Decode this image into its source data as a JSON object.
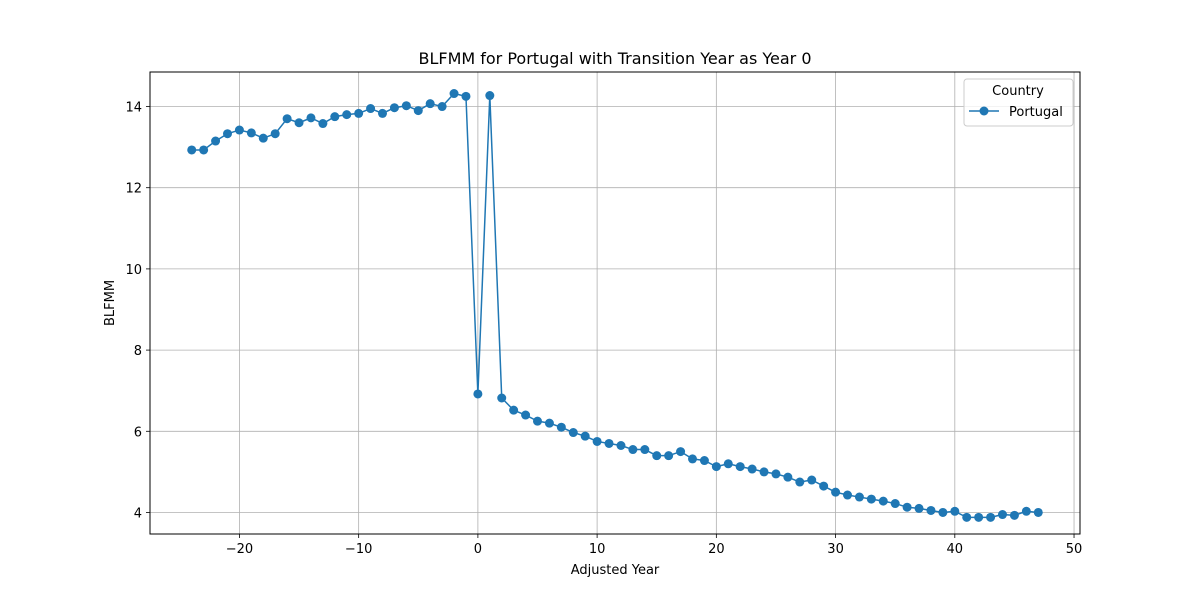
{
  "chart_data": {
    "type": "line",
    "title": "BLFMM for Portugal with Transition Year as Year 0",
    "xlabel": "Adjusted Year",
    "ylabel": "BLFMM",
    "xlim": [
      -27.5,
      50.5
    ],
    "ylim": [
      3.47,
      14.85
    ],
    "xticks": [
      -20,
      -10,
      0,
      10,
      20,
      30,
      40,
      50
    ],
    "xtick_labels": [
      "−20",
      "−10",
      "0",
      "10",
      "20",
      "30",
      "40",
      "50"
    ],
    "yticks": [
      4,
      6,
      8,
      10,
      12,
      14
    ],
    "ytick_labels": [
      "4",
      "6",
      "8",
      "10",
      "12",
      "14"
    ],
    "grid": true,
    "legend": {
      "title": "Country",
      "placement": "top-right"
    },
    "series": [
      {
        "name": "Portugal",
        "color": "#1f77b4",
        "marker": "circle",
        "x": [
          -24,
          -23,
          -22,
          -21,
          -20,
          -19,
          -18,
          -17,
          -16,
          -15,
          -14,
          -13,
          -12,
          -11,
          -10,
          -9,
          -8,
          -7,
          -6,
          -5,
          -4,
          -3,
          -2,
          -1,
          0,
          1,
          2,
          3,
          4,
          5,
          6,
          7,
          8,
          9,
          10,
          11,
          12,
          13,
          14,
          15,
          16,
          17,
          18,
          19,
          20,
          21,
          22,
          23,
          24,
          25,
          26,
          27,
          28,
          29,
          30,
          31,
          32,
          33,
          34,
          35,
          36,
          37,
          38,
          39,
          40,
          41,
          42,
          43,
          44,
          45,
          46,
          47
        ],
        "y": [
          12.93,
          12.93,
          13.15,
          13.33,
          13.42,
          13.35,
          13.22,
          13.33,
          13.7,
          13.6,
          13.72,
          13.58,
          13.75,
          13.8,
          13.83,
          13.95,
          13.83,
          13.97,
          14.02,
          13.9,
          14.07,
          14.0,
          14.32,
          14.25,
          6.92,
          14.27,
          6.82,
          6.52,
          6.4,
          6.25,
          6.2,
          6.1,
          5.97,
          5.88,
          5.75,
          5.7,
          5.65,
          5.55,
          5.55,
          5.4,
          5.4,
          5.5,
          5.32,
          5.28,
          5.13,
          5.2,
          5.13,
          5.07,
          5.0,
          4.95,
          4.87,
          4.75,
          4.8,
          4.65,
          4.5,
          4.43,
          4.38,
          4.33,
          4.28,
          4.22,
          4.13,
          4.1,
          4.05,
          4.0,
          4.03,
          3.88,
          3.88,
          3.88,
          3.95,
          3.93,
          4.03,
          4.0
        ]
      }
    ]
  }
}
